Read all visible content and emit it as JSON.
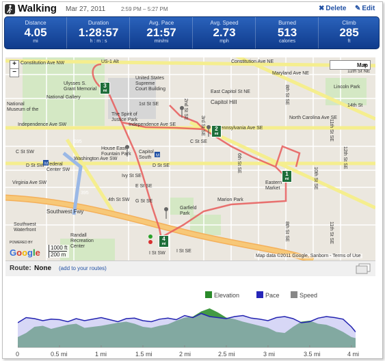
{
  "header": {
    "title": "Walking",
    "date": "Mar 27, 2011",
    "time_range": "2:59 PM – 5:27 PM",
    "delete_label": "Delete",
    "edit_label": "Edit"
  },
  "stats": [
    {
      "label": "Distance",
      "value": "4.05",
      "unit": "mi"
    },
    {
      "label": "Duration",
      "value": "1:28:57",
      "unit": "h : m : s"
    },
    {
      "label": "Avg. Pace",
      "value": "21:57",
      "unit": "min/mi"
    },
    {
      "label": "Avg. Speed",
      "value": "2.73",
      "unit": "mph"
    },
    {
      "label": "Burned",
      "value": "513",
      "unit": "calories"
    },
    {
      "label": "Climb",
      "value": "285",
      "unit": "ft"
    }
  ],
  "map": {
    "type_selector": "Map",
    "zoom_in": "+",
    "zoom_out": "−",
    "logo": "Google",
    "powered_by": "POWERED BY",
    "scale_ft": "1000 ft",
    "scale_m": "200 m",
    "attribution": "Map data ©2011 Google, Sanborn - Terms of Use",
    "mile_markers": [
      "1",
      "2",
      "3",
      "4"
    ],
    "marker_unit": "mi",
    "labels": [
      "Constitution Ave NE",
      "Constitution Ave NW",
      "US-1 Alt",
      "United States",
      "Supreme",
      "Court Building",
      "Maryland Ave NE",
      "East Capitol St NE",
      "Capitol Hill",
      "Lincoln Park",
      "The Spirit of",
      "Justice Park",
      "Independence Ave SW",
      "Independence Ave SE",
      "Pennsylvania Ave SE",
      "North Carolina Ave SE",
      "Washington Ave SW",
      "House East",
      "Fountain Park",
      "Capitol",
      "South",
      "D St SE",
      "D St SW",
      "Federal",
      "Center SW",
      "Virginia Ave SW",
      "Southwest Fwy",
      "Garfield",
      "Park",
      "Marion Park",
      "Eastern",
      "Market",
      "Southwest",
      "Waterfront",
      "Randall",
      "Recreation",
      "Center",
      "National",
      "Museum of the",
      "Ulysses S.",
      "Grant Memorial",
      "395",
      "2nd St SE",
      "8th St SE",
      "11th St SE",
      "E St SE",
      "I St SW",
      "C St SW",
      "Ivy St SE",
      "G St SE",
      "3rd St SE",
      "12th St SE",
      "10th St SE",
      "I St SE",
      "6th St SE",
      "National Gallery",
      "4th St SW",
      "1st St SE",
      "C St SE",
      "M",
      "M",
      "11th St NE",
      "14th St"
    ]
  },
  "route": {
    "label": "Route:",
    "value": "None",
    "add_link": "(add to your routes)"
  },
  "chart_data": {
    "type": "area",
    "series": [
      {
        "name": "Elevation",
        "color": "#2a8a2a"
      },
      {
        "name": "Pace",
        "color": "#2626b8"
      },
      {
        "name": "Speed",
        "color": "#888888"
      }
    ],
    "x_ticks": [
      "0",
      "0.5 mi",
      "1 mi",
      "1.5 mi",
      "2 mi",
      "2.5 mi",
      "3 mi",
      "3.5 mi",
      "4 mi"
    ],
    "xlim": [
      0,
      4.05
    ],
    "elevation_x": [
      0,
      0.1,
      0.2,
      0.3,
      0.4,
      0.5,
      0.6,
      0.7,
      0.8,
      0.9,
      1.0,
      1.1,
      1.2,
      1.3,
      1.4,
      1.5,
      1.6,
      1.7,
      1.8,
      1.9,
      2.0,
      2.1,
      2.2,
      2.3,
      2.4,
      2.5,
      2.6,
      2.7,
      2.8,
      2.9,
      3.0,
      3.1,
      3.2,
      3.3,
      3.4,
      3.5,
      3.6,
      3.7,
      3.8,
      3.9,
      4.0,
      4.05
    ],
    "elevation": [
      20,
      28,
      40,
      42,
      36,
      40,
      44,
      46,
      38,
      40,
      42,
      45,
      48,
      50,
      46,
      40,
      38,
      42,
      45,
      52,
      58,
      60,
      70,
      76,
      68,
      58,
      55,
      50,
      46,
      42,
      38,
      30,
      28,
      40,
      50,
      52,
      46,
      44,
      38,
      30,
      20,
      18
    ],
    "pace_x": [
      0,
      0.1,
      0.2,
      0.3,
      0.4,
      0.5,
      0.6,
      0.7,
      0.8,
      0.9,
      1.0,
      1.1,
      1.2,
      1.3,
      1.4,
      1.5,
      1.6,
      1.7,
      1.8,
      1.9,
      2.0,
      2.1,
      2.2,
      2.3,
      2.4,
      2.5,
      2.6,
      2.7,
      2.8,
      2.9,
      3.0,
      3.1,
      3.2,
      3.3,
      3.4,
      3.5,
      3.6,
      3.7,
      3.8,
      3.9,
      4.0,
      4.05
    ],
    "pace": [
      48,
      58,
      56,
      52,
      55,
      54,
      50,
      56,
      52,
      55,
      58,
      54,
      50,
      56,
      57,
      52,
      50,
      55,
      57,
      54,
      62,
      58,
      66,
      60,
      58,
      56,
      60,
      62,
      57,
      55,
      52,
      58,
      60,
      56,
      48,
      50,
      57,
      60,
      58,
      55,
      40,
      30
    ]
  }
}
